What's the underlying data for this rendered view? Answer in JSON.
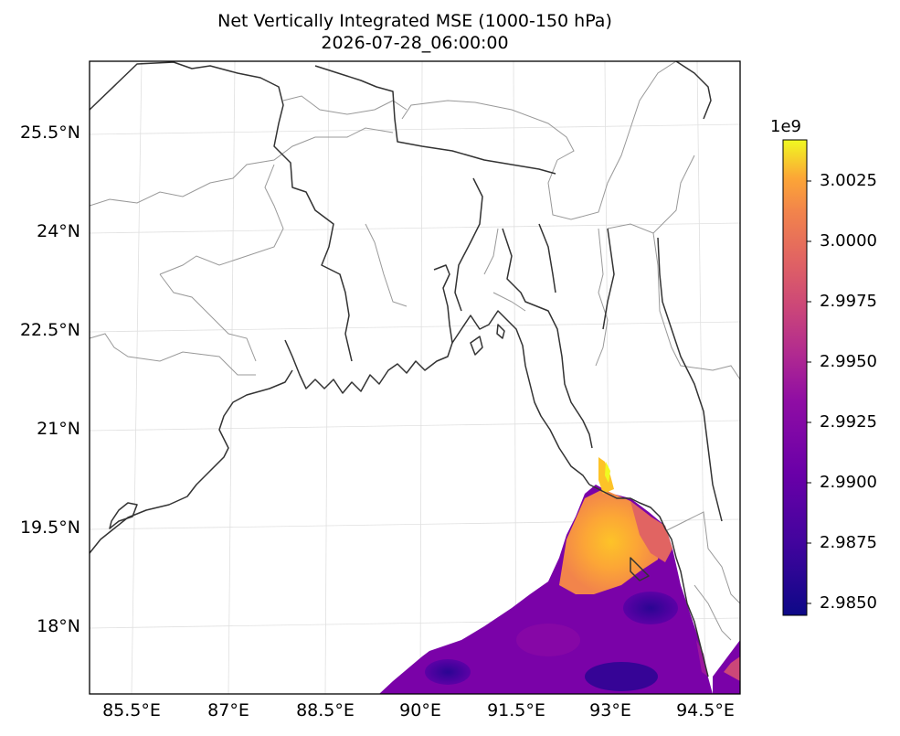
{
  "title": "Net Vertically Integrated MSE (1000-150 hPa)",
  "subtitle": "2026-07-28_06:00:00",
  "lat_labels": [
    "25.5°N",
    "24°N",
    "22.5°N",
    "21°N",
    "19.5°N",
    "18°N"
  ],
  "lon_labels": [
    "85.5°E",
    "87°E",
    "88.5°E",
    "90°E",
    "91.5°E",
    "93°E",
    "94.5°E"
  ],
  "colorbar": {
    "exponent": "1e9",
    "ticks": [
      "3.0025",
      "3.0000",
      "2.9975",
      "2.9950",
      "2.9925",
      "2.9900",
      "2.9875",
      "2.9850"
    ],
    "colormap": "plasma",
    "min_color": "#0d0887",
    "max_color": "#f0f921"
  },
  "map": {
    "extent_lon": [
      84.9,
      94.8
    ],
    "extent_lat": [
      17.0,
      26.6
    ],
    "field": "sea-only shaded values in Bay of Bengal, highest (yellow) near 20.5°N 93°E",
    "coastline_color": "#333333",
    "border_color": "#999999",
    "gridline_color": "#e0e0e0"
  }
}
